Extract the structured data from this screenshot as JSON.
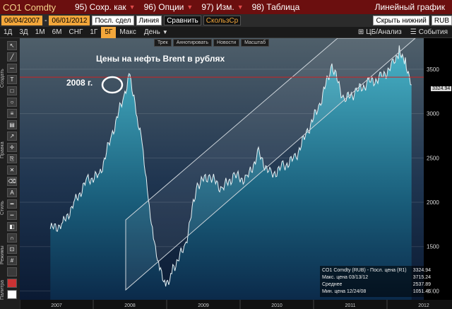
{
  "topbar": {
    "ticker": "CO1 Comdty",
    "menu": [
      {
        "label": "95) Сохр. как"
      },
      {
        "label": "96) Опции"
      },
      {
        "label": "97) Изм."
      },
      {
        "label": "98) Таблица"
      }
    ],
    "title": "Линейный график"
  },
  "inputs": {
    "start_date": "06/04/2007",
    "end_date": "06/01/2012",
    "price_type": "Посл. сдел",
    "chart_type": "Линия",
    "compare": "Сравнить",
    "moving_avg": "СкользСр",
    "axis_mode": "Скрыть нижний",
    "currency": "RUB"
  },
  "periods": [
    "1Д",
    "3Д",
    "1М",
    "6М",
    "СНГ",
    "1Г",
    "5Г",
    "Макс"
  ],
  "active_period": "5Г",
  "toolbar": {
    "interval": "День",
    "analysis": "ЦБ/Анализ",
    "events": "События"
  },
  "tool_labels": [
    "Создать",
    "Правка",
    "Стиль",
    "Режимы",
    "Палитра"
  ],
  "chart_tabs": [
    "Трек",
    "Аннотировать",
    "Новости",
    "Масштаб"
  ],
  "chart_data": {
    "type": "area",
    "title": "Цены на нефть Brent в рублях",
    "annotation": "2008 г.",
    "x_ticks": [
      "2007",
      "2008",
      "2009",
      "2010",
      "2011",
      "2012"
    ],
    "y_ticks": [
      1000,
      1500,
      2000,
      2500,
      3000,
      3500
    ],
    "ylim": [
      900,
      3850
    ],
    "last_price": "3324.94",
    "reference_level": 3410,
    "series": [
      {
        "points": [
          [
            "2007-06",
            1700
          ],
          [
            "2007-08",
            1750
          ],
          [
            "2007-10",
            2000
          ],
          [
            "2007-12",
            2250
          ],
          [
            "2008-02",
            2300
          ],
          [
            "2008-04",
            2750
          ],
          [
            "2008-06",
            3200
          ],
          [
            "2008-07",
            3450
          ],
          [
            "2008-08",
            3000
          ],
          [
            "2008-09",
            2650
          ],
          [
            "2008-10",
            2000
          ],
          [
            "2008-11",
            1500
          ],
          [
            "2008-12",
            1200
          ],
          [
            "2009-01",
            1051
          ],
          [
            "2009-02",
            1250
          ],
          [
            "2009-04",
            1500
          ],
          [
            "2009-06",
            2200
          ],
          [
            "2009-08",
            2300
          ],
          [
            "2009-10",
            2150
          ],
          [
            "2009-12",
            2300
          ],
          [
            "2010-02",
            2250
          ],
          [
            "2010-04",
            2550
          ],
          [
            "2010-06",
            2300
          ],
          [
            "2010-08",
            2400
          ],
          [
            "2010-10",
            2500
          ],
          [
            "2010-12",
            2800
          ],
          [
            "2011-02",
            3100
          ],
          [
            "2011-04",
            3550
          ],
          [
            "2011-06",
            3150
          ],
          [
            "2011-08",
            3250
          ],
          [
            "2011-10",
            3350
          ],
          [
            "2011-12",
            3400
          ],
          [
            "2012-02",
            3550
          ],
          [
            "2012-03",
            3715
          ],
          [
            "2012-04",
            3600
          ],
          [
            "2012-05",
            3324
          ]
        ]
      }
    ]
  },
  "legend": {
    "rows": [
      {
        "label": "CO1 Comdty (RUB) - Посл. цена (R1)",
        "value": "3324.94"
      },
      {
        "label": "Макс. цена 03/13/12",
        "value": "3715.24"
      },
      {
        "label": "Среднее",
        "value": "2537.89"
      },
      {
        "label": "Мин. цена 12/24/08",
        "value": "1051.46"
      }
    ]
  },
  "colors": {
    "title_bg": "#6b0f0f",
    "accent": "#f3a73b",
    "area_top": "#3aa0b8",
    "area_bottom": "#0b2a4a",
    "reference_line": "#cc2222"
  }
}
